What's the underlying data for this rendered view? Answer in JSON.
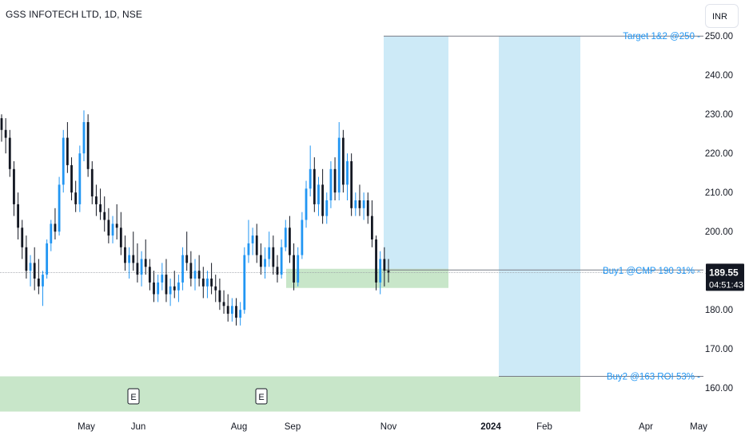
{
  "header": {
    "symbol_title": "GSS INFOTECH LTD, 1D, NSE",
    "currency": "INR"
  },
  "price_label": {
    "price": "189.55",
    "countdown": "04:51:43"
  },
  "annotations": {
    "target": "Target 1&2 @250",
    "buy1": "Buy1 @CMP 190 31%",
    "buy2": "Buy2 @163 ROI 53%"
  },
  "colors": {
    "up": "#2196f3",
    "down": "#131722",
    "target_zone": "#cdeaf7",
    "buy_zone": "#c8e6c9",
    "price_label_bg": "#131722"
  },
  "chart_data": {
    "type": "candlestick",
    "title": "GSS INFOTECH LTD, 1D, NSE",
    "y_axis": {
      "min": 156,
      "max": 253,
      "ticks": [
        "160.00",
        "170.00",
        "180.00",
        "190.00",
        "200.00",
        "210.00",
        "220.00",
        "230.00",
        "240.00",
        "250.00"
      ]
    },
    "x_axis": {
      "ticks": [
        "May",
        "Jun",
        "Aug",
        "Sep",
        "Nov",
        "2024",
        "Feb",
        "Apr",
        "May"
      ]
    },
    "earnings_markers": [
      "E",
      "E"
    ],
    "last_price": 189.55,
    "levels": [
      {
        "label": "Target 1&2 @250",
        "price": 250
      },
      {
        "label": "Buy1 @CMP 190 31%",
        "price": 190
      },
      {
        "label": "Buy2 @163 ROI 53%",
        "price": 163
      }
    ],
    "candles": [
      [
        229,
        230,
        223,
        226
      ],
      [
        226,
        229,
        220,
        224
      ],
      [
        224,
        226,
        214,
        216
      ],
      [
        216,
        218,
        204,
        207
      ],
      [
        207,
        210,
        198,
        201
      ],
      [
        201,
        203,
        193,
        196
      ],
      [
        196,
        199,
        188,
        190
      ],
      [
        190,
        194,
        186,
        192
      ],
      [
        192,
        196,
        185,
        188
      ],
      [
        188,
        193,
        184,
        186
      ],
      [
        186,
        190,
        181,
        189
      ],
      [
        189,
        198,
        188,
        197
      ],
      [
        197,
        203,
        195,
        202
      ],
      [
        202,
        206,
        198,
        200
      ],
      [
        200,
        214,
        199,
        212
      ],
      [
        212,
        226,
        210,
        224
      ],
      [
        224,
        228,
        215,
        217
      ],
      [
        217,
        219,
        208,
        210
      ],
      [
        210,
        213,
        205,
        207
      ],
      [
        207,
        222,
        205,
        220
      ],
      [
        220,
        231,
        218,
        228
      ],
      [
        228,
        230,
        214,
        216
      ],
      [
        216,
        218,
        207,
        209
      ],
      [
        209,
        212,
        204,
        207
      ],
      [
        207,
        211,
        203,
        205
      ],
      [
        205,
        209,
        200,
        203
      ],
      [
        203,
        206,
        197,
        199
      ],
      [
        199,
        204,
        197,
        202
      ],
      [
        202,
        207,
        198,
        201
      ],
      [
        201,
        205,
        194,
        196
      ],
      [
        196,
        199,
        190,
        192
      ],
      [
        192,
        196,
        188,
        194
      ],
      [
        194,
        200,
        190,
        192
      ],
      [
        192,
        197,
        187,
        189
      ],
      [
        189,
        195,
        186,
        193
      ],
      [
        193,
        198,
        189,
        191
      ],
      [
        191,
        193,
        185,
        187
      ],
      [
        187,
        190,
        182,
        184
      ],
      [
        184,
        189,
        182,
        187
      ],
      [
        187,
        192,
        185,
        189
      ],
      [
        189,
        193,
        182,
        184
      ],
      [
        184,
        188,
        181,
        186
      ],
      [
        186,
        190,
        183,
        185
      ],
      [
        185,
        189,
        182,
        187
      ],
      [
        187,
        196,
        185,
        194
      ],
      [
        194,
        200,
        190,
        192
      ],
      [
        192,
        195,
        186,
        188
      ],
      [
        188,
        193,
        185,
        190
      ],
      [
        190,
        194,
        186,
        188
      ],
      [
        188,
        191,
        183,
        186
      ],
      [
        186,
        190,
        183,
        188
      ],
      [
        188,
        192,
        184,
        186
      ],
      [
        186,
        189,
        182,
        185
      ],
      [
        185,
        188,
        180,
        182
      ],
      [
        182,
        185,
        179,
        181
      ],
      [
        181,
        184,
        177,
        179
      ],
      [
        179,
        183,
        177,
        181
      ],
      [
        181,
        183,
        176,
        178
      ],
      [
        178,
        182,
        176,
        180
      ],
      [
        180,
        196,
        179,
        194
      ],
      [
        194,
        203,
        192,
        197
      ],
      [
        197,
        201,
        194,
        199
      ],
      [
        199,
        202,
        192,
        194
      ],
      [
        194,
        197,
        189,
        191
      ],
      [
        191,
        196,
        188,
        193
      ],
      [
        193,
        200,
        191,
        196
      ],
      [
        196,
        199,
        189,
        191
      ],
      [
        191,
        194,
        187,
        189
      ],
      [
        189,
        198,
        188,
        196
      ],
      [
        196,
        203,
        195,
        201
      ],
      [
        201,
        204,
        192,
        194
      ],
      [
        194,
        197,
        185,
        187
      ],
      [
        187,
        196,
        186,
        194
      ],
      [
        194,
        205,
        193,
        203
      ],
      [
        203,
        213,
        201,
        211
      ],
      [
        211,
        222,
        209,
        216
      ],
      [
        216,
        219,
        205,
        207
      ],
      [
        207,
        214,
        204,
        212
      ],
      [
        212,
        216,
        202,
        204
      ],
      [
        204,
        210,
        202,
        208
      ],
      [
        208,
        218,
        206,
        216
      ],
      [
        216,
        219,
        208,
        210
      ],
      [
        210,
        228,
        208,
        224
      ],
      [
        224,
        226,
        210,
        212
      ],
      [
        212,
        220,
        208,
        218
      ],
      [
        218,
        220,
        204,
        206
      ],
      [
        206,
        210,
        204,
        208
      ],
      [
        208,
        212,
        204,
        206
      ],
      [
        206,
        210,
        203,
        208
      ],
      [
        208,
        210,
        202,
        204
      ],
      [
        204,
        208,
        196,
        198
      ],
      [
        198,
        199,
        185,
        187
      ],
      [
        187,
        195,
        184,
        193
      ],
      [
        193,
        196,
        186,
        190
      ],
      [
        190,
        193,
        187,
        189.55
      ]
    ]
  }
}
